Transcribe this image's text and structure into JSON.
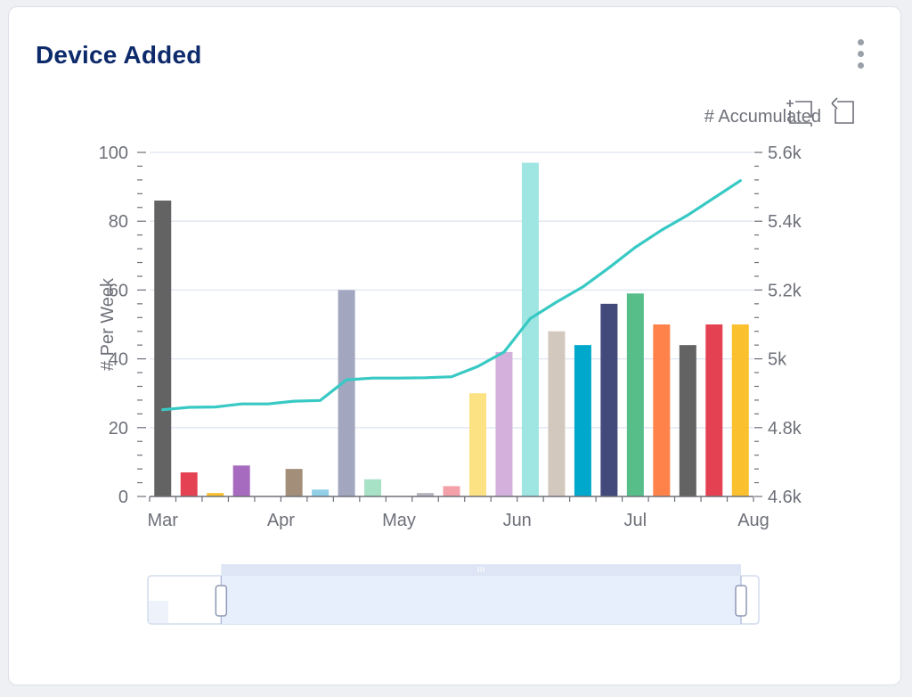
{
  "card": {
    "title": "Device Added"
  },
  "icons": {
    "menu": "kebab-menu-icon",
    "zoom": "zoom-select-icon",
    "reset": "zoom-reset-icon"
  },
  "chart_data": {
    "type": "bar",
    "title": "",
    "ylabel_left": "# Per Week",
    "ylabel_right": "# Accumulated",
    "left_axis": {
      "min": 0,
      "max": 100,
      "ticks": [
        "0",
        "20",
        "40",
        "60",
        "80",
        "100"
      ]
    },
    "right_axis": {
      "min": 4.6,
      "max": 5.6,
      "ticks": [
        "4.6k",
        "4.8k",
        "5k",
        "5.2k",
        "5.4k",
        "5.6k"
      ]
    },
    "x_ticks": [
      "Mar",
      "Apr",
      "May",
      "Jun",
      "Jul",
      "Aug"
    ],
    "x_tick_bar_index": [
      0,
      4.5,
      9,
      13.5,
      18,
      22.5
    ],
    "grid": true,
    "series": [
      {
        "name": "# Per Week",
        "type": "bar",
        "values": [
          86,
          7,
          1,
          9,
          0,
          8,
          2,
          60,
          5,
          0,
          1,
          3,
          30,
          42,
          97,
          48,
          44,
          56,
          59,
          50,
          44,
          50,
          50
        ],
        "colors": [
          "#636363",
          "#e44253",
          "#fbc02d",
          "#a66bbe",
          "#a66bbe",
          "#a38e79",
          "#91cfe7",
          "#a2a6bf",
          "#a7e2c6",
          "#c8c8c8",
          "#b4b4bc",
          "#f3a0a8",
          "#fde283",
          "#d3b1dc",
          "#9fe6e3",
          "#d3c8be",
          "#00a9cb",
          "#424a7c",
          "#57be8a",
          "#ff824a",
          "#636363",
          "#e44253",
          "#fbc02d"
        ]
      },
      {
        "name": "# Accumulated",
        "type": "line",
        "color": "#38c9c4",
        "values": [
          4.852,
          4.859,
          4.86,
          4.869,
          4.869,
          4.877,
          4.879,
          4.939,
          4.944,
          4.944,
          4.945,
          4.948,
          4.978,
          5.02,
          5.117,
          5.165,
          5.209,
          5.265,
          5.324,
          5.374,
          5.418,
          5.468,
          5.518
        ]
      }
    ],
    "datazoom": {
      "start": 0.12,
      "end": 1.0
    }
  }
}
